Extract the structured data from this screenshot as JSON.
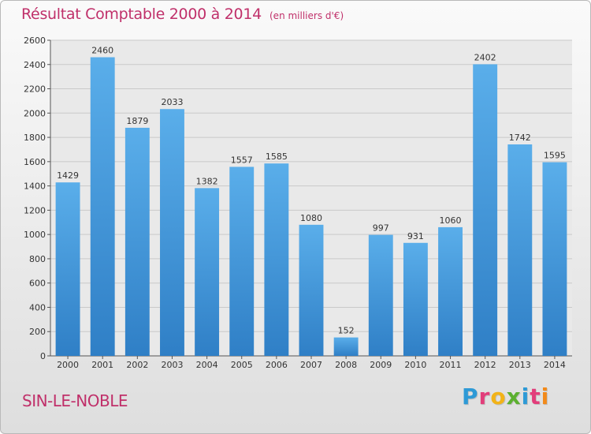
{
  "header": {
    "title": "Résultat Comptable 2000 à 2014",
    "unit": "(en milliers d'€)"
  },
  "footer": {
    "commune": "SIN-LE-NOBLE",
    "logo": {
      "letters": [
        "P",
        "r",
        "o",
        "x",
        "i",
        "t",
        "i"
      ],
      "colors": [
        "#2e9ad6",
        "#e23d7a",
        "#f2b318",
        "#5cb030",
        "#2e9ad6",
        "#e23d7a",
        "#f28a1a"
      ]
    }
  },
  "colors": {
    "bar": "#4a9fe1",
    "bar_dark": "#2f7fc6",
    "title": "#c0306a",
    "grid": "#c9c9c9",
    "plot_bg": "#e9e9e9"
  },
  "chart_data": {
    "type": "bar",
    "categories": [
      "2000",
      "2001",
      "2002",
      "2003",
      "2004",
      "2005",
      "2006",
      "2007",
      "2008",
      "2009",
      "2010",
      "2011",
      "2012",
      "2013",
      "2014"
    ],
    "values": [
      1429,
      2460,
      1879,
      2033,
      1382,
      1557,
      1585,
      1080,
      152,
      997,
      931,
      1060,
      2402,
      1742,
      1595
    ],
    "ylim": [
      0,
      2600
    ],
    "yticks": [
      0,
      200,
      400,
      600,
      800,
      1000,
      1200,
      1400,
      1600,
      1800,
      2000,
      2200,
      2400,
      2600
    ],
    "grid": true,
    "data_labels": true
  }
}
